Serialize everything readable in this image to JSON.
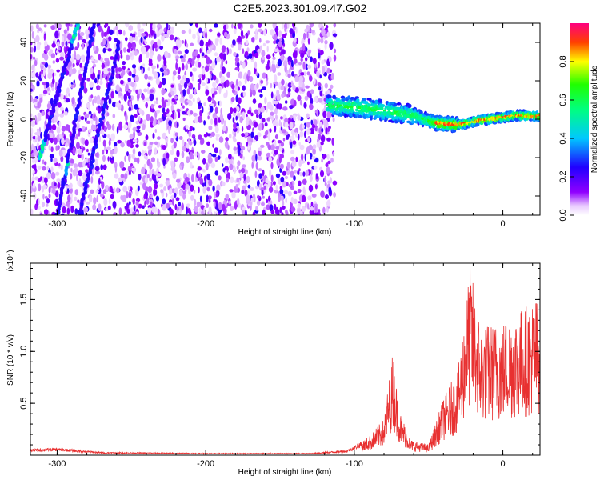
{
  "title": "C2E5.2023.301.09.47.G02",
  "chart_data": [
    {
      "type": "heatmap",
      "xlabel": "Height of straight line (km)",
      "ylabel": "Frequency (Hz)",
      "xlim": [
        -318,
        25
      ],
      "ylim": [
        -50,
        50
      ],
      "x_ticks": [
        -300,
        -200,
        -100,
        0
      ],
      "y_ticks": [
        -40,
        -20,
        0,
        20,
        40
      ],
      "colorbar": {
        "label": "Normalized spectral amplitude",
        "range": [
          0,
          1
        ],
        "ticks": [
          0.0,
          0.2,
          0.4,
          0.6,
          0.8
        ]
      },
      "features": {
        "noise_region_x": [
          -318,
          -116
        ],
        "signal_track": [
          {
            "x": -118,
            "y": 7
          },
          {
            "x": -100,
            "y": 6.5
          },
          {
            "x": -80,
            "y": 4.5
          },
          {
            "x": -60,
            "y": 2
          },
          {
            "x": -45,
            "y": -2
          },
          {
            "x": -30,
            "y": -3
          },
          {
            "x": -15,
            "y": -0.5
          },
          {
            "x": 0,
            "y": 1
          },
          {
            "x": 10,
            "y": 2
          },
          {
            "x": 25,
            "y": 1.5
          }
        ],
        "diagonal_streaks": [
          {
            "x1": -312,
            "y1": -20,
            "x2": -286,
            "y2": 50
          },
          {
            "x1": -300,
            "y1": -50,
            "x2": -275,
            "y2": 50
          },
          {
            "x1": -285,
            "y1": -50,
            "x2": -258,
            "y2": 40
          }
        ]
      }
    },
    {
      "type": "line",
      "xlabel": "Height of straight line (km)",
      "ylabel": "SNR (10 * v/v)",
      "y_scale_note": "(x10⁴)",
      "xlim": [
        -318,
        25
      ],
      "ylim": [
        0,
        1.85
      ],
      "x_ticks": [
        -300,
        -200,
        -100,
        0
      ],
      "y_ticks": [
        0.5,
        1.0,
        1.5
      ],
      "series_color": "#e83030",
      "envelope": [
        {
          "x": -318,
          "y": 0.06
        },
        {
          "x": -300,
          "y": 0.07
        },
        {
          "x": -270,
          "y": 0.03
        },
        {
          "x": -200,
          "y": 0.02
        },
        {
          "x": -130,
          "y": 0.02
        },
        {
          "x": -105,
          "y": 0.05
        },
        {
          "x": -90,
          "y": 0.18
        },
        {
          "x": -80,
          "y": 0.35
        },
        {
          "x": -74,
          "y": 1.02
        },
        {
          "x": -70,
          "y": 0.45
        },
        {
          "x": -62,
          "y": 0.15
        },
        {
          "x": -50,
          "y": 0.1
        },
        {
          "x": -40,
          "y": 0.55
        },
        {
          "x": -30,
          "y": 0.85
        },
        {
          "x": -22,
          "y": 1.85
        },
        {
          "x": -15,
          "y": 1.25
        },
        {
          "x": 0,
          "y": 1.3
        },
        {
          "x": 10,
          "y": 1.4
        },
        {
          "x": 25,
          "y": 1.55
        }
      ]
    }
  ]
}
